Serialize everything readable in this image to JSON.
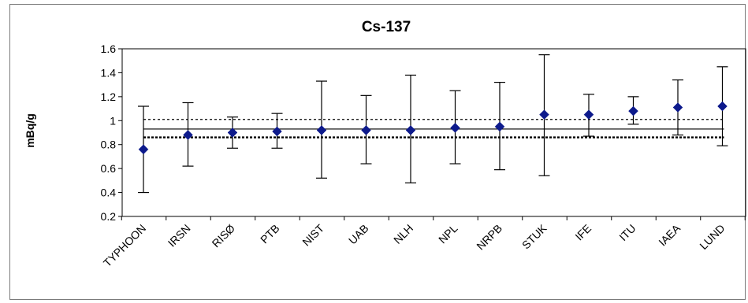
{
  "chart_data": {
    "type": "scatter",
    "title": "Cs-137",
    "ylabel": "mBq/g",
    "xlabel": "",
    "ylim": [
      0.2,
      1.6
    ],
    "yticks": [
      "0.2",
      "0.4",
      "0.6",
      "0.8",
      "1",
      "1.2",
      "1.4",
      "1.6"
    ],
    "grid": false,
    "legend": "none",
    "categories": [
      "TYPHOON",
      "IRSN",
      "RISØ",
      "PTB",
      "NIST",
      "UAB",
      "NLH",
      "NPL",
      "NRPB",
      "STUK",
      "IFE",
      "ITU",
      "IAEA",
      "LUND"
    ],
    "values": [
      0.76,
      0.88,
      0.9,
      0.91,
      0.92,
      0.92,
      0.92,
      0.94,
      0.95,
      1.05,
      1.05,
      1.08,
      1.11,
      1.12
    ],
    "error_low": [
      0.4,
      0.62,
      0.77,
      0.77,
      0.52,
      0.64,
      0.48,
      0.64,
      0.59,
      0.54,
      0.87,
      0.97,
      0.88,
      0.79
    ],
    "error_high": [
      1.12,
      1.15,
      1.03,
      1.06,
      1.33,
      1.21,
      1.38,
      1.25,
      1.32,
      1.55,
      1.22,
      1.2,
      1.34,
      1.45
    ],
    "reference_lines": [
      {
        "value": 0.93,
        "style": "solid"
      },
      {
        "value": 1.01,
        "style": "dotted-thin"
      },
      {
        "value": 0.86,
        "style": "dotted-thick"
      }
    ],
    "colors": {
      "marker": "#0d1a8c",
      "errorbar": "#000000",
      "axis": "#000000",
      "frame": "#7a7a7a"
    }
  }
}
